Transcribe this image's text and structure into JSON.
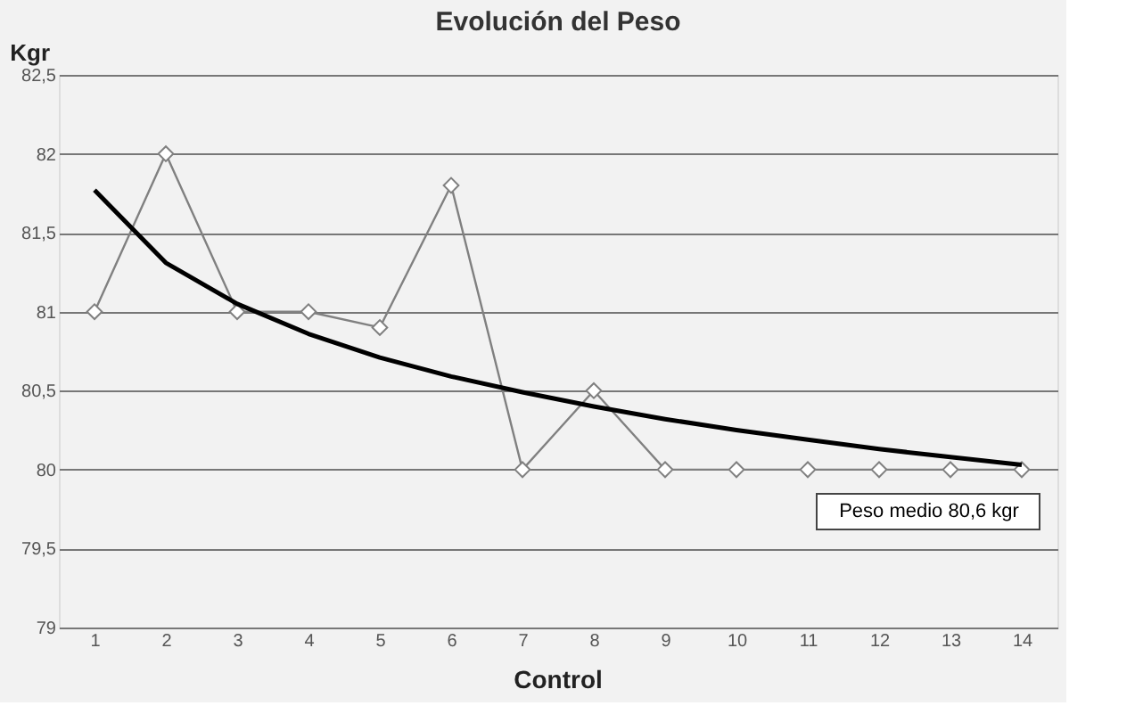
{
  "chart_data": {
    "type": "line",
    "title": "Evolución del Peso",
    "xlabel": "Control",
    "ylabel": "Kgr",
    "x": [
      1,
      2,
      3,
      4,
      5,
      6,
      7,
      8,
      9,
      10,
      11,
      12,
      13,
      14
    ],
    "series": [
      {
        "color": "#808080",
        "marker": "diamond",
        "values": [
          81,
          82,
          81,
          81,
          80.9,
          81.8,
          80,
          80.5,
          80,
          80,
          80,
          80,
          80,
          80
        ]
      },
      {
        "type": "line",
        "color": "#000000",
        "marker": "none",
        "x": [
          1,
          2,
          3,
          4,
          5,
          6,
          7,
          8,
          9,
          10,
          11,
          12,
          13,
          14
        ],
        "values": [
          81.77,
          81.31,
          81.05,
          80.86,
          80.71,
          80.59,
          80.49,
          80.4,
          80.32,
          80.25,
          80.19,
          80.13,
          80.08,
          80.03
        ]
      }
    ],
    "xlim": [
      0.5,
      14.5
    ],
    "xticks": [
      1,
      2,
      3,
      4,
      5,
      6,
      7,
      8,
      9,
      10,
      11,
      12,
      13,
      14
    ],
    "ylim": [
      79,
      82.5
    ],
    "yticks": [
      {
        "value": 79,
        "label": "79"
      },
      {
        "value": 79.5,
        "label": "79,5"
      },
      {
        "value": 80,
        "label": "80"
      },
      {
        "value": 80.5,
        "label": "80,5"
      },
      {
        "value": 81,
        "label": "81"
      },
      {
        "value": 81.5,
        "label": "81,5"
      },
      {
        "value": 82,
        "label": "82"
      },
      {
        "value": 82.5,
        "label": "82,5"
      }
    ],
    "grid": "y",
    "annotations": [
      "Peso medio 80,6 kgr"
    ]
  }
}
